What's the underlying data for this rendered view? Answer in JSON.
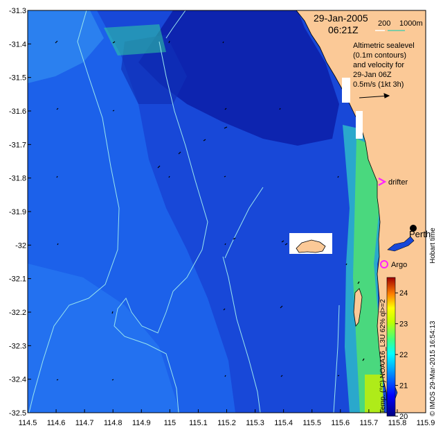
{
  "map": {
    "date": "29-Jan-2005",
    "time": "06:21Z",
    "bathymetry_legend": {
      "label_200": "200",
      "label_1000": "1000m",
      "color_200": "#ffffff",
      "color_1000": "#55ccaa"
    },
    "annotation_lines": [
      "Altimetric sealevel",
      "(0.1m contours)",
      "and velocity for",
      "29-Jan 06Z",
      "0.5m/s (1kt 3h)"
    ],
    "drifter_label": "drifter",
    "argo_label": "Argo",
    "city_label": "Perth",
    "hobart_label": "Hobart time",
    "credit": "© IMOS 29-Mar-2015 16:54:13",
    "sst_label": "Temp. (°C) NOAA16_L3U 62% ql>=2",
    "colorbar": {
      "min": 20,
      "max": 24.5,
      "ticks": [
        "20",
        "21",
        "22",
        "23",
        "24"
      ]
    },
    "lon_ticks": [
      "114.5",
      "114.6",
      "114.7",
      "114.8",
      "114.9",
      "115",
      "115.1",
      "115.2",
      "115.3",
      "115.4",
      "115.5",
      "115.6",
      "115.7",
      "115.8",
      "115.9"
    ],
    "lat_ticks": [
      "-31.3",
      "-31.4",
      "-31.5",
      "-31.6",
      "-31.7",
      "-31.8",
      "-31.9",
      "-32",
      "-32.1",
      "-32.2",
      "-32.3",
      "-32.4",
      "-32.5"
    ],
    "colors": {
      "land": "#fbc997",
      "drifter": "#ff22ff",
      "argo": "#ff22ff",
      "contour": "#9ae6ee"
    }
  }
}
